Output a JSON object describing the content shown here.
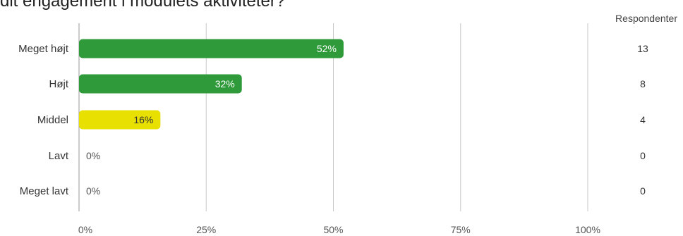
{
  "question": "dit engagement i modulets aktiviteter?",
  "respondents_header": "Respondenter",
  "colors": {
    "green": "#2e9a3a",
    "yellow": "#e8e000",
    "grid": "#c8c8c8",
    "axis": "#999999"
  },
  "chart_data": {
    "type": "bar",
    "orientation": "horizontal",
    "categories": [
      "Meget højt",
      "Højt",
      "Middel",
      "Lavt",
      "Meget lavt"
    ],
    "values": [
      52,
      32,
      16,
      0,
      0
    ],
    "value_labels": [
      "52%",
      "32%",
      "16%",
      "0%",
      "0%"
    ],
    "respondents": [
      13,
      8,
      4,
      0,
      0
    ],
    "bar_colors": [
      "#2e9a3a",
      "#2e9a3a",
      "#e8e000",
      "#2e9a3a",
      "#2e9a3a"
    ],
    "xlim": [
      0,
      100
    ],
    "xticks": [
      "0%",
      "25%",
      "50%",
      "75%",
      "100%"
    ],
    "grid": true,
    "title": "",
    "xlabel": "",
    "ylabel": ""
  }
}
